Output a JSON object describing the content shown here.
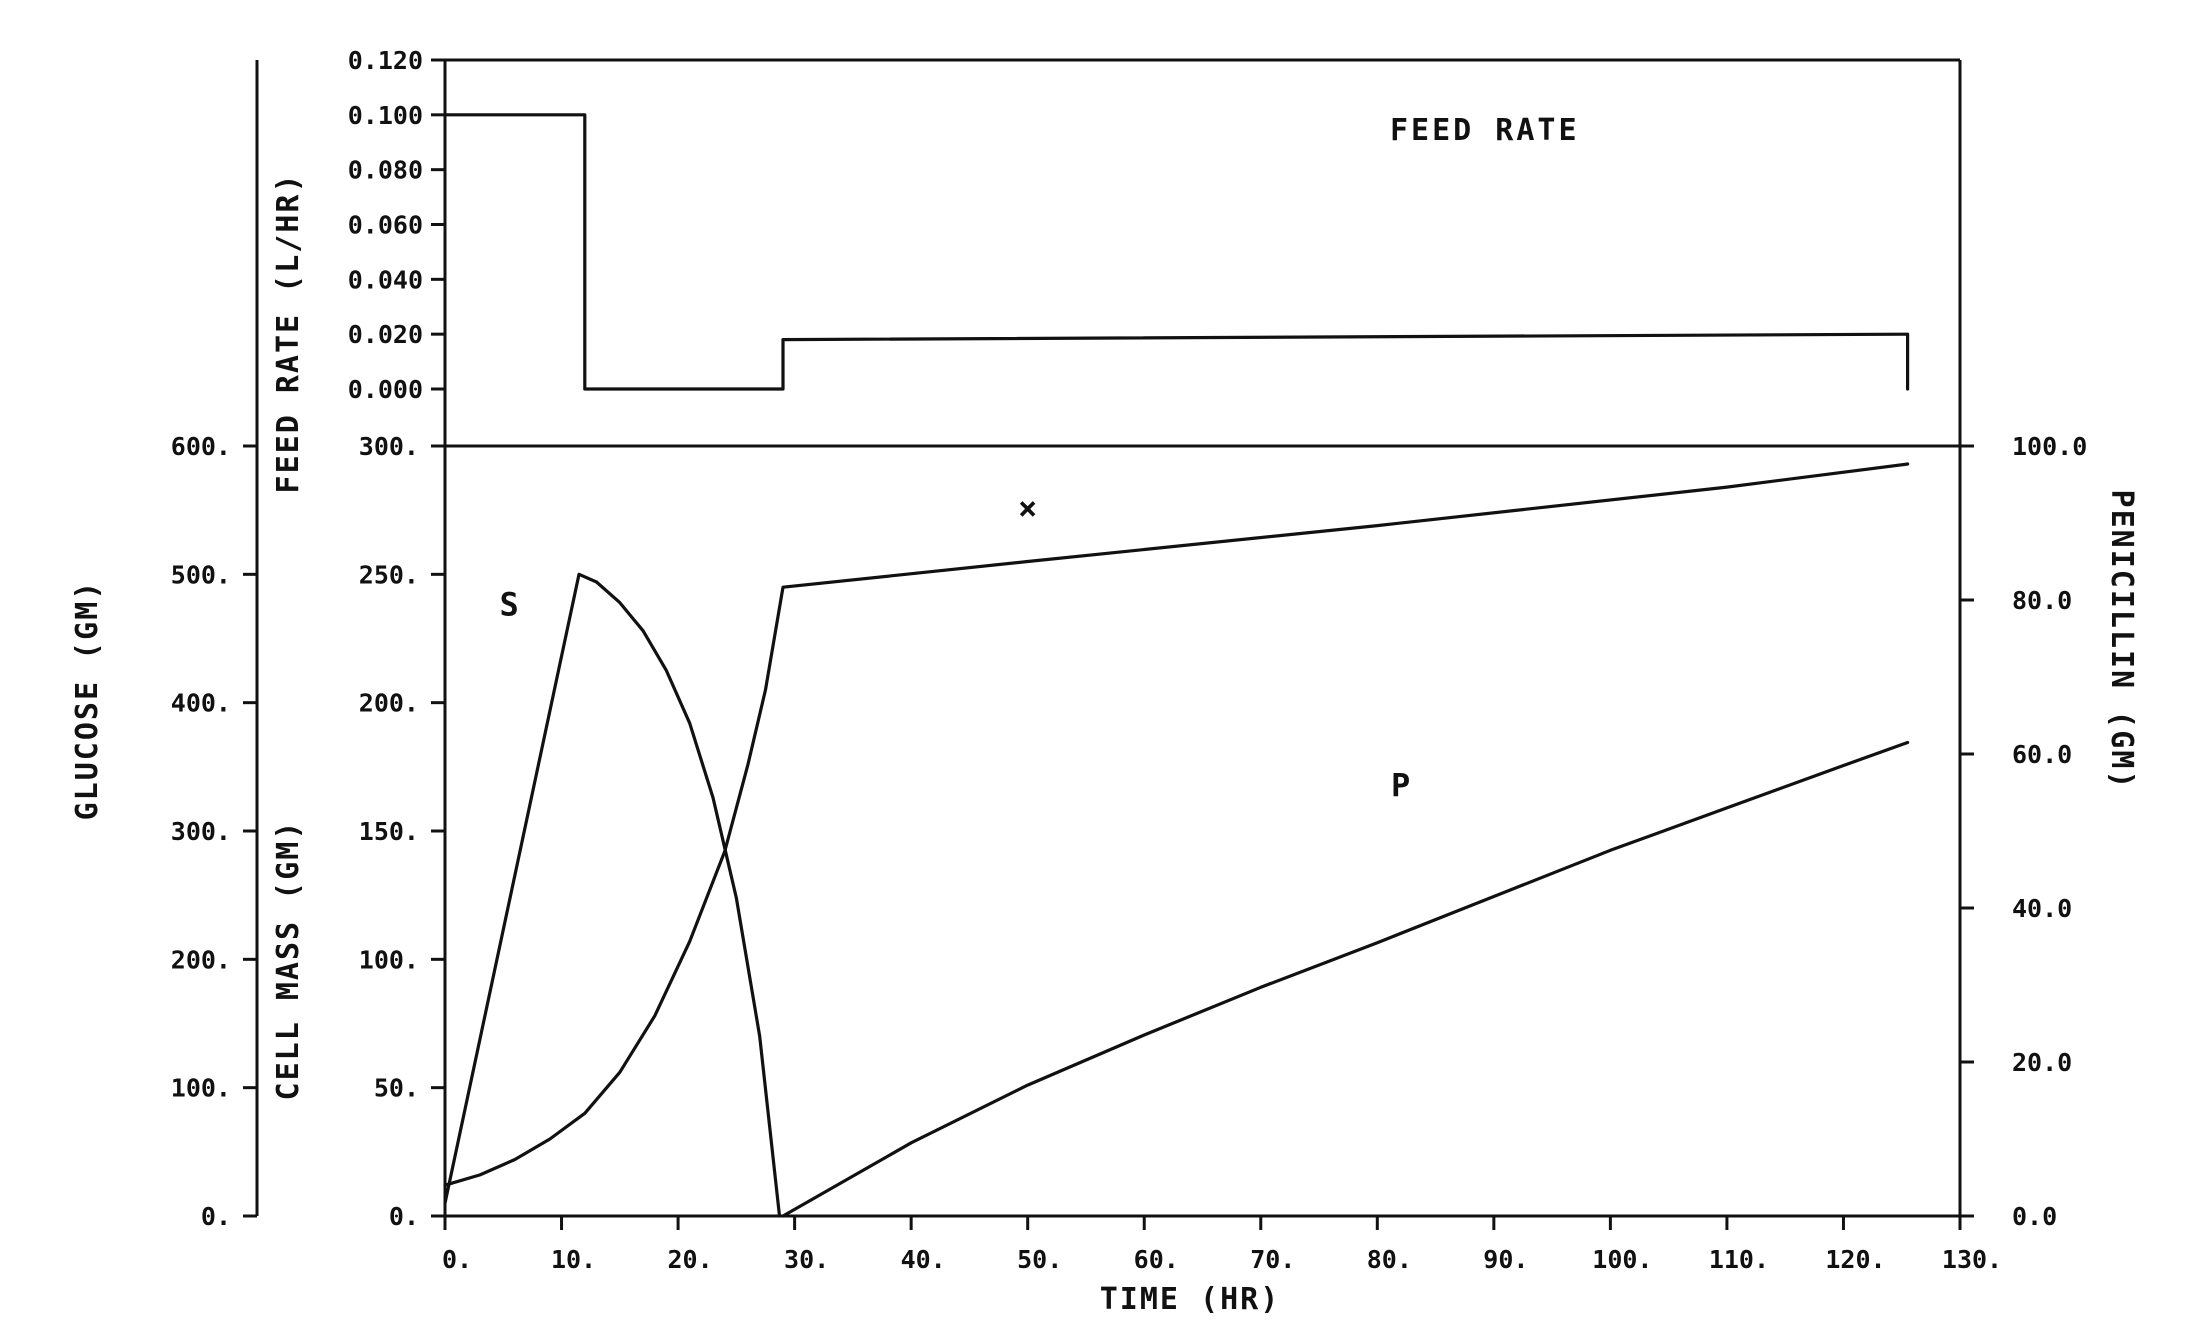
{
  "chart_data": [
    {
      "type": "line",
      "panel": "feed-rate",
      "title": "FEED RATE",
      "ylabel": "FEED RATE (L/HR)",
      "ylim": [
        0.0,
        0.12
      ],
      "ytick_labels": [
        "0.000",
        "0.020",
        "0.040",
        "0.060",
        "0.080",
        "0.100",
        "0.120"
      ],
      "xlim": [
        0,
        130
      ],
      "series": [
        {
          "points": [
            [
              0,
              0.1
            ],
            [
              12,
              0.1
            ],
            [
              12,
              0.0
            ],
            [
              29,
              0.0
            ],
            [
              29,
              0.018
            ],
            [
              125.5,
              0.02
            ],
            [
              125.5,
              0.0
            ]
          ]
        }
      ]
    },
    {
      "type": "line",
      "panel": "fermentation",
      "xlabel": "TIME (HR)",
      "xlim": [
        0,
        130
      ],
      "x_tick_labels": [
        "0.",
        "10.",
        "20.",
        "30.",
        "40.",
        "50.",
        "60.",
        "70.",
        "80.",
        "90.",
        "100.",
        "110.",
        "120.",
        "130."
      ],
      "y_axes": [
        {
          "id": "glucose",
          "label": "GLUCOSE (GM)",
          "range": [
            0,
            600
          ],
          "tick_labels": [
            "0.",
            "100.",
            "200.",
            "300.",
            "400.",
            "500.",
            "600."
          ]
        },
        {
          "id": "cell",
          "label": "CELL MASS (GM)",
          "range": [
            0,
            300
          ],
          "tick_labels": [
            "0.",
            "50.",
            "100.",
            "150.",
            "200.",
            "250.",
            "300."
          ]
        },
        {
          "id": "pen",
          "label": "PENICILLIN (GM)",
          "range": [
            0,
            100
          ],
          "tick_labels": [
            "0.0",
            "20.0",
            "40.0",
            "60.0",
            "80.0",
            "100.0"
          ]
        }
      ],
      "series": [
        {
          "name": "S",
          "axis": "glucose",
          "points": [
            [
              0,
              10
            ],
            [
              11.5,
              500
            ],
            [
              13,
              494
            ],
            [
              15,
              478
            ],
            [
              17,
              456
            ],
            [
              19,
              425
            ],
            [
              21,
              384
            ],
            [
              23,
              326
            ],
            [
              25,
              248
            ],
            [
              27,
              140
            ],
            [
              28.7,
              0
            ]
          ]
        },
        {
          "name": "X",
          "axis": "cell",
          "points": [
            [
              0,
              12
            ],
            [
              3,
              16
            ],
            [
              6,
              22
            ],
            [
              9,
              30
            ],
            [
              12,
              40
            ],
            [
              15,
              56
            ],
            [
              18,
              78
            ],
            [
              21,
              107
            ],
            [
              24,
              142
            ],
            [
              26,
              176
            ],
            [
              27.5,
              205
            ],
            [
              29,
              245
            ],
            [
              50,
              255
            ],
            [
              80,
              269
            ],
            [
              110,
              284
            ],
            [
              125.5,
              293
            ]
          ]
        },
        {
          "name": "P",
          "axis": "pen",
          "points": [
            [
              29,
              0
            ],
            [
              40,
              9.5
            ],
            [
              50,
              17
            ],
            [
              60,
              23.5
            ],
            [
              70,
              29.7
            ],
            [
              80,
              35.5
            ],
            [
              90,
              41.5
            ],
            [
              100,
              47.5
            ],
            [
              110,
              53
            ],
            [
              120,
              58.5
            ],
            [
              125.5,
              61.5
            ]
          ]
        }
      ]
    }
  ]
}
